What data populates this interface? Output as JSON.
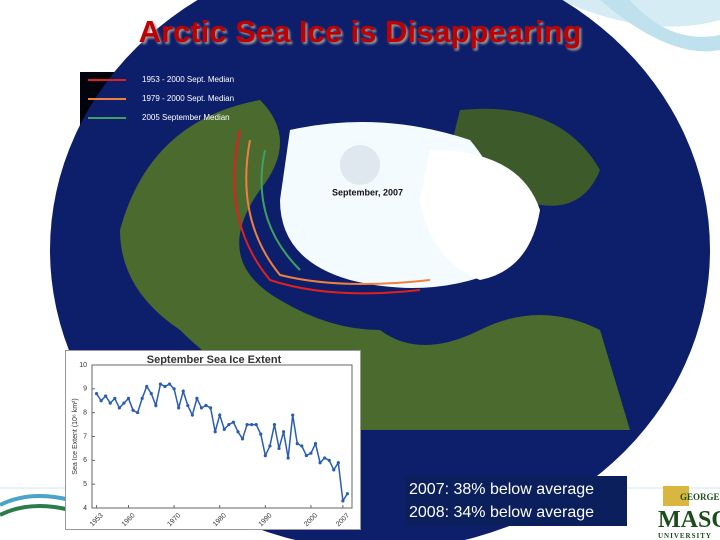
{
  "slide_title": "Arctic Sea Ice is Disappearing",
  "map": {
    "legend": [
      {
        "label": "1953 - 2000 Sept. Median",
        "color": "#e02020"
      },
      {
        "label": "1979 - 2000 Sept. Median",
        "color": "#f08040"
      },
      {
        "label": "2005 September Median",
        "color": "#40a060"
      }
    ],
    "label": "September, 2007"
  },
  "note": [
    "2007: 38% below average",
    "2008: 34% below average"
  ],
  "logo": [
    "GEORGE",
    "MASON",
    "UNIVERSITY"
  ],
  "chart_data": {
    "type": "line",
    "title": "September Sea Ice Extent",
    "y_label": "Sea Ice Extent (10⁶ km²)",
    "x": [
      1953,
      1954,
      1955,
      1956,
      1957,
      1958,
      1959,
      1960,
      1961,
      1962,
      1963,
      1964,
      1965,
      1966,
      1967,
      1968,
      1969,
      1970,
      1971,
      1972,
      1973,
      1974,
      1975,
      1976,
      1977,
      1978,
      1979,
      1980,
      1981,
      1982,
      1983,
      1984,
      1985,
      1986,
      1987,
      1988,
      1989,
      1990,
      1991,
      1992,
      1993,
      1994,
      1995,
      1996,
      1997,
      1998,
      1999,
      2000,
      2001,
      2002,
      2003,
      2004,
      2005,
      2006,
      2007,
      2008
    ],
    "series": [
      {
        "name": "September Sea Ice Extent",
        "color": "#2a5db0",
        "values": [
          8.8,
          8.5,
          8.7,
          8.4,
          8.6,
          8.2,
          8.4,
          8.6,
          8.1,
          8.0,
          8.6,
          9.1,
          8.8,
          8.3,
          9.2,
          9.1,
          9.2,
          9.0,
          8.2,
          8.9,
          8.3,
          7.9,
          8.6,
          8.2,
          8.3,
          8.2,
          7.2,
          7.9,
          7.3,
          7.5,
          7.6,
          7.2,
          6.9,
          7.5,
          7.5,
          7.5,
          7.1,
          6.2,
          6.6,
          7.5,
          6.5,
          7.2,
          6.1,
          7.9,
          6.7,
          6.6,
          6.2,
          6.3,
          6.7,
          5.9,
          6.1,
          6.0,
          5.6,
          5.9,
          4.3,
          4.6
        ]
      }
    ],
    "xlim": [
      1952,
      2009
    ],
    "xticks": [
      1953,
      1960,
      1970,
      1980,
      1990,
      2000,
      2007
    ],
    "ylim": [
      4,
      10
    ],
    "yticks": [
      4,
      5,
      6,
      7,
      8,
      9,
      10
    ]
  }
}
